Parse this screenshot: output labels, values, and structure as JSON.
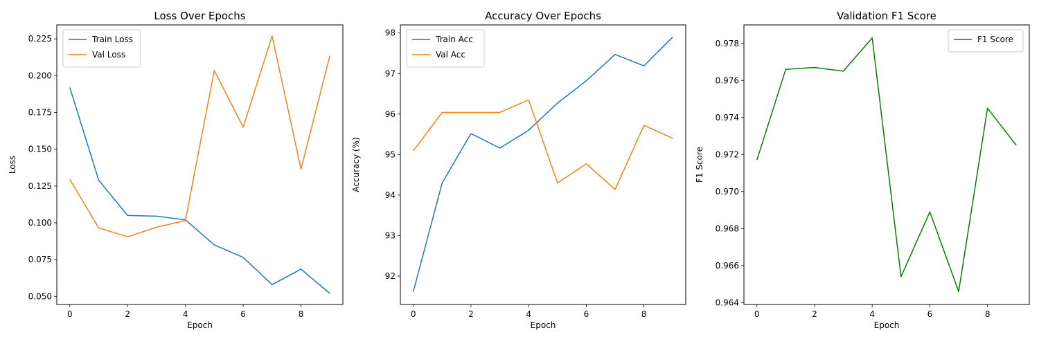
{
  "chart_data": [
    {
      "type": "line",
      "title": "Loss Over Epochs",
      "xlabel": "Epoch",
      "ylabel": "Loss",
      "x": [
        0,
        1,
        2,
        3,
        4,
        5,
        6,
        7,
        8,
        9
      ],
      "xlim": [
        -0.45,
        9.45
      ],
      "ylim": [
        0.0445,
        0.2345
      ],
      "xticks": [
        0,
        2,
        4,
        6,
        8
      ],
      "yticks": [
        0.05,
        0.075,
        0.1,
        0.125,
        0.15,
        0.175,
        0.2,
        0.225
      ],
      "ytick_labels": [
        "0.050",
        "0.075",
        "0.100",
        "0.125",
        "0.150",
        "0.175",
        "0.200",
        "0.225"
      ],
      "legend_position": "top-left",
      "grid": false,
      "series": [
        {
          "name": "Train Loss",
          "color": "#1f77b4",
          "values": [
            0.192,
            0.129,
            0.105,
            0.1045,
            0.102,
            0.085,
            0.0765,
            0.058,
            0.0685,
            0.052
          ]
        },
        {
          "name": "Val Loss",
          "color": "#ff7f0e",
          "values": [
            0.1295,
            0.0965,
            0.0905,
            0.097,
            0.1015,
            0.2035,
            0.165,
            0.227,
            0.1365,
            0.2135
          ]
        }
      ]
    },
    {
      "type": "line",
      "title": "Accuracy Over Epochs",
      "xlabel": "Epoch",
      "ylabel": "Accuracy (%)",
      "x": [
        0,
        1,
        2,
        3,
        4,
        5,
        6,
        7,
        8,
        9
      ],
      "xlim": [
        -0.45,
        9.45
      ],
      "ylim": [
        91.3,
        98.2
      ],
      "xticks": [
        0,
        2,
        4,
        6,
        8
      ],
      "yticks": [
        92,
        93,
        94,
        95,
        96,
        97,
        98
      ],
      "ytick_labels": [
        "92",
        "93",
        "94",
        "95",
        "96",
        "97",
        "98"
      ],
      "legend_position": "top-left",
      "grid": false,
      "series": [
        {
          "name": "Train Acc",
          "color": "#1f77b4",
          "values": [
            91.62,
            94.3,
            95.52,
            95.16,
            95.6,
            96.27,
            96.82,
            97.47,
            97.19,
            97.9
          ]
        },
        {
          "name": "Val Acc",
          "color": "#ff7f0e",
          "values": [
            95.09,
            96.04,
            96.04,
            96.04,
            96.35,
            94.3,
            94.77,
            94.14,
            95.72,
            95.4
          ]
        }
      ]
    },
    {
      "type": "line",
      "title": "Validation F1 Score",
      "xlabel": "Epoch",
      "ylabel": "F1 Score",
      "x": [
        0,
        1,
        2,
        3,
        4,
        5,
        6,
        7,
        8,
        9
      ],
      "xlim": [
        -0.45,
        9.45
      ],
      "ylim": [
        0.9639,
        0.979
      ],
      "xticks": [
        0,
        2,
        4,
        6,
        8
      ],
      "yticks": [
        0.964,
        0.966,
        0.968,
        0.97,
        0.972,
        0.974,
        0.976,
        0.978
      ],
      "ytick_labels": [
        "0.964",
        "0.966",
        "0.968",
        "0.970",
        "0.972",
        "0.974",
        "0.976",
        "0.978"
      ],
      "legend_position": "top-right",
      "grid": false,
      "series": [
        {
          "name": "F1 Score",
          "color": "#008000",
          "values": [
            0.9717,
            0.9766,
            0.9767,
            0.9765,
            0.9783,
            0.9654,
            0.9689,
            0.9646,
            0.9745,
            0.9725
          ]
        }
      ]
    }
  ]
}
